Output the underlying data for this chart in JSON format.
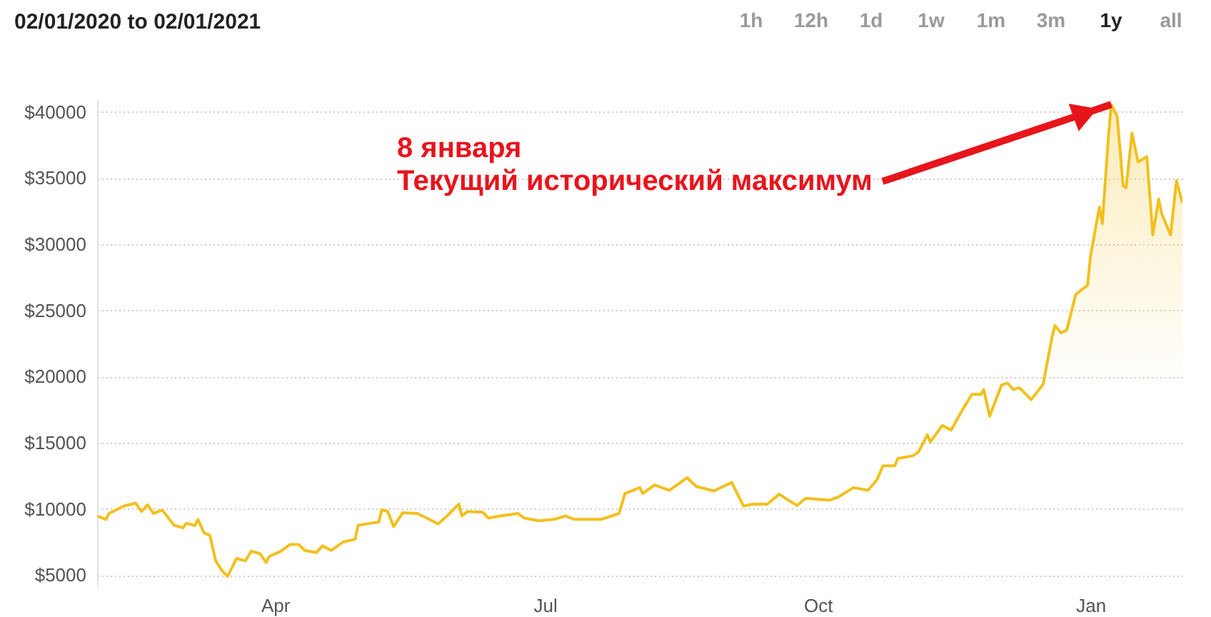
{
  "chart_data": {
    "type": "area",
    "title": "02/01/2020 to 02/01/2021",
    "x": [
      "2020-02-01",
      "2020-02-04",
      "2020-02-05",
      "2020-02-10",
      "2020-02-14",
      "2020-02-16",
      "2020-02-18",
      "2020-02-20",
      "2020-02-23",
      "2020-02-27",
      "2020-03-01",
      "2020-03-02",
      "2020-03-05",
      "2020-03-06",
      "2020-03-08",
      "2020-03-10",
      "2020-03-12",
      "2020-03-14",
      "2020-03-16",
      "2020-03-17",
      "2020-03-19",
      "2020-03-22",
      "2020-03-24",
      "2020-03-27",
      "2020-03-29",
      "2020-03-30",
      "2020-04-03",
      "2020-04-06",
      "2020-04-09",
      "2020-04-11",
      "2020-04-15",
      "2020-04-17",
      "2020-04-20",
      "2020-04-24",
      "2020-04-28",
      "2020-04-29",
      "2020-05-03",
      "2020-05-06",
      "2020-05-07",
      "2020-05-09",
      "2020-05-11",
      "2020-05-14",
      "2020-05-19",
      "2020-05-23",
      "2020-05-26",
      "2020-05-29",
      "2020-06-02",
      "2020-06-03",
      "2020-06-05",
      "2020-06-10",
      "2020-06-12",
      "2020-06-16",
      "2020-06-22",
      "2020-06-24",
      "2020-06-29",
      "2020-07-04",
      "2020-07-08",
      "2020-07-11",
      "2020-07-20",
      "2020-07-26",
      "2020-07-28",
      "2020-08-02",
      "2020-08-03",
      "2020-08-07",
      "2020-08-12",
      "2020-08-18",
      "2020-08-21",
      "2020-08-27",
      "2020-09-02",
      "2020-09-06",
      "2020-09-09",
      "2020-09-14",
      "2020-09-18",
      "2020-09-24",
      "2020-09-27",
      "2020-10-05",
      "2020-10-08",
      "2020-10-13",
      "2020-10-18",
      "2020-10-21",
      "2020-10-23",
      "2020-10-27",
      "2020-10-28",
      "2020-11-02",
      "2020-11-04",
      "2020-11-07",
      "2020-11-08",
      "2020-11-12",
      "2020-11-15",
      "2020-11-19",
      "2020-11-22",
      "2020-11-25",
      "2020-11-26",
      "2020-11-28",
      "2020-12-02",
      "2020-12-04",
      "2020-12-06",
      "2020-12-08",
      "2020-12-12",
      "2020-12-16",
      "2020-12-19",
      "2020-12-20",
      "2020-12-22",
      "2020-12-24",
      "2020-12-27",
      "2020-12-31",
      "2021-01-01",
      "2021-01-04",
      "2021-01-05",
      "2021-01-07",
      "2021-01-08",
      "2021-01-10",
      "2021-01-12",
      "2021-01-13",
      "2021-01-15",
      "2021-01-17",
      "2021-01-20",
      "2021-01-22",
      "2021-01-24",
      "2021-01-25",
      "2021-01-28",
      "2021-01-30",
      "2021-02-01"
    ],
    "series": [
      {
        "color": "#f2c01e",
        "values": [
          9450,
          9200,
          9650,
          10200,
          10430,
          9800,
          10300,
          9650,
          9900,
          8750,
          8570,
          8900,
          8750,
          9200,
          8200,
          8000,
          6070,
          5360,
          4900,
          5360,
          6250,
          6070,
          6800,
          6600,
          5950,
          6400,
          6800,
          7300,
          7300,
          6860,
          6700,
          7200,
          6860,
          7500,
          7700,
          8750,
          8900,
          9000,
          9930,
          9800,
          8650,
          9700,
          9650,
          9200,
          8850,
          9460,
          10360,
          9460,
          9800,
          9750,
          9300,
          9460,
          9650,
          9300,
          9100,
          9200,
          9460,
          9200,
          9200,
          9650,
          11150,
          11600,
          11150,
          11800,
          11400,
          12350,
          11700,
          11350,
          12000,
          10200,
          10350,
          10350,
          11100,
          10250,
          10800,
          10650,
          10900,
          11600,
          11400,
          12200,
          13250,
          13250,
          13800,
          14000,
          14300,
          15600,
          15050,
          16300,
          15950,
          17550,
          18650,
          18650,
          19000,
          17000,
          19350,
          19500,
          19000,
          19150,
          18250,
          19400,
          22950,
          23850,
          23300,
          23500,
          26200,
          26900,
          29100,
          32800,
          31550,
          38000,
          40550,
          39650,
          34400,
          34250,
          38400,
          36200,
          36600,
          30700,
          33400,
          32300,
          30700,
          34800,
          33100
        ]
      }
    ],
    "xlim": [
      "2020-02-01",
      "2021-02-01"
    ],
    "xticks": [
      {
        "value": "2020-04-01",
        "label": "Apr"
      },
      {
        "value": "2020-07-01",
        "label": "Jul"
      },
      {
        "value": "2020-10-01",
        "label": "Oct"
      },
      {
        "value": "2021-01-01",
        "label": "Jan"
      }
    ],
    "ylim": [
      4200,
      41000
    ],
    "yticks": [
      {
        "value": 5000,
        "label": "$5000"
      },
      {
        "value": 10000,
        "label": "$10000"
      },
      {
        "value": 15000,
        "label": "$15000"
      },
      {
        "value": 20000,
        "label": "$20000"
      },
      {
        "value": 25000,
        "label": "$25000"
      },
      {
        "value": 30000,
        "label": "$30000"
      },
      {
        "value": 35000,
        "label": "$35000"
      },
      {
        "value": 40000,
        "label": "$40000"
      }
    ],
    "grid": "y",
    "annotations": [
      {
        "text": "8 января\nТекущий исторический максимум",
        "x": "2021-01-08",
        "y": 40550
      },
      "1h",
      "12h",
      "1d",
      "1w",
      "1m",
      "3m",
      "1y",
      "all"
    ]
  }
}
